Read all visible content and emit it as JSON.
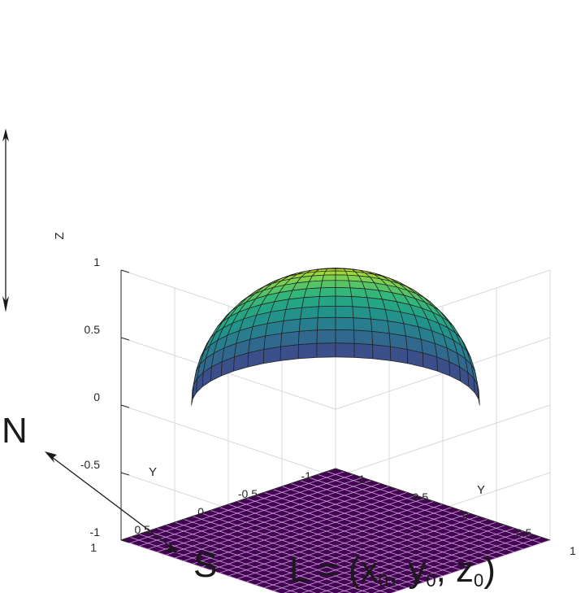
{
  "chart_data": {
    "type": "surface",
    "series": [
      {
        "name": "",
        "description_shape": "hemisphere",
        "center": [
          0,
          0,
          0
        ],
        "radius": 0.95,
        "z_range": [
          0,
          0.95
        ],
        "colormap": "viridis"
      },
      {
        "name": "",
        "description_shape": "plane",
        "z": -1,
        "xlim": [
          -1,
          1
        ],
        "ylim": [
          -1,
          1
        ]
      }
    ],
    "xlabel": "Y",
    "ylabel": "Y",
    "zlabel": "Z",
    "xlim": [
      -1,
      1
    ],
    "ylim": [
      -1,
      1
    ],
    "zlim": [
      -1,
      1
    ],
    "xticks": [
      "-1",
      "-0.5",
      "0",
      "0.5",
      "1"
    ],
    "yticks": [
      "-1",
      "-0.5",
      "0",
      "0.5",
      "1"
    ],
    "zticks": [
      "-1",
      "-0.5",
      "0",
      "0.5",
      "1"
    ],
    "grid": true
  },
  "annotations": {
    "north": "N",
    "south": "S",
    "formula_prefix": "L = (x",
    "sub0_a": "0",
    "sep1": ", y",
    "sub0_b": "0",
    "sep2": ", z",
    "sub0_c": "0",
    "formula_suffix": ")"
  },
  "colors": {
    "plane": "#440154",
    "plane_grid": "#c9a6d6",
    "mesh": "#1f1f1f",
    "grid": "#d9d9d9",
    "axis": "#262626"
  }
}
